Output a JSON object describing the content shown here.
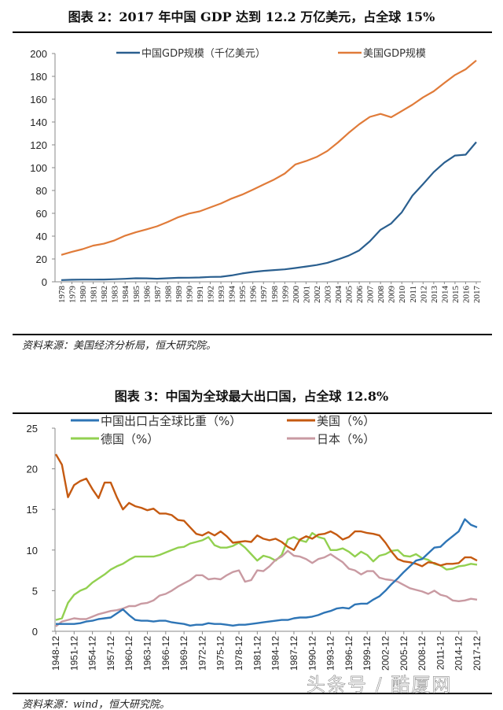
{
  "chart_data": [
    {
      "type": "line",
      "title": "图表 2：2017 年中国 GDP 达到 12.2 万亿美元，占全球 15%",
      "source": "资料来源：美国经济分析局，恒大研究院。",
      "ylim": [
        0,
        200
      ],
      "yticks": [
        0,
        20,
        40,
        60,
        80,
        100,
        120,
        140,
        160,
        180,
        200
      ],
      "legend": "top",
      "grid": false,
      "x": [
        "1978",
        "1979",
        "1980",
        "1981",
        "1982",
        "1983",
        "1984",
        "1985",
        "1986",
        "1987",
        "1988",
        "1989",
        "1990",
        "1991",
        "1992",
        "1993",
        "1994",
        "1995",
        "1996",
        "1997",
        "1998",
        "1999",
        "2000",
        "2001",
        "2002",
        "2003",
        "2004",
        "2005",
        "2006",
        "2007",
        "2008",
        "2009",
        "2010",
        "2011",
        "2012",
        "2013",
        "2014",
        "2015",
        "2016",
        "2017"
      ],
      "series": [
        {
          "name": "中国GDP规模（千亿美元）",
          "color": "#2a5f8f",
          "values": [
            1.5,
            1.8,
            1.9,
            1.9,
            2.0,
            2.3,
            2.6,
            3.1,
            3.0,
            2.7,
            3.1,
            3.5,
            3.6,
            3.8,
            4.3,
            4.4,
            5.6,
            7.3,
            8.6,
            9.6,
            10.3,
            10.9,
            12.1,
            13.4,
            14.7,
            16.6,
            19.6,
            22.9,
            27.5,
            35.5,
            45.6,
            51.1,
            60.9,
            75.5,
            85.6,
            96.1,
            104.4,
            110.6,
            111.4,
            122.4
          ]
        },
        {
          "name": "美国GDP规模",
          "color": "#e07b39",
          "values": [
            23.6,
            26.3,
            28.6,
            31.7,
            33.4,
            36.3,
            40.4,
            43.4,
            45.9,
            48.6,
            52.4,
            56.6,
            59.8,
            61.7,
            65.2,
            68.6,
            72.9,
            76.4,
            80.7,
            85.2,
            89.6,
            94.8,
            102.8,
            105.8,
            109.4,
            114.6,
            122.1,
            130.4,
            138.1,
            144.5,
            147.1,
            144.2,
            149.6,
            155.2,
            161.6,
            166.9,
            174.2,
            181.2,
            186.2,
            193.9
          ]
        }
      ]
    },
    {
      "type": "line",
      "title": "图表 3：中国为全球最大出口国，占全球 12.8%",
      "source": "资料来源：wind，恒大研究院。",
      "ylim": [
        0,
        25
      ],
      "yticks": [
        0,
        5,
        10,
        15,
        20,
        25
      ],
      "legend": "top",
      "grid": false,
      "x_start_year": 1948,
      "x_end_year": 2017,
      "xticks": [
        "1948-12",
        "1951-12",
        "1954-12",
        "1957-12",
        "1960-12",
        "1963-12",
        "1966-12",
        "1969-12",
        "1972-12",
        "1975-12",
        "1978-12",
        "1981-12",
        "1984-12",
        "1987-12",
        "1990-12",
        "1993-12",
        "1996-12",
        "1999-12",
        "2002-12",
        "2005-12",
        "2008-12",
        "2011-12",
        "2014-12",
        "2017-12"
      ],
      "series": [
        {
          "name": "中国出口占全球比重（%）",
          "color": "#2e75b6",
          "values": [
            0.9,
            0.9,
            0.9,
            0.9,
            1.0,
            1.2,
            1.3,
            1.5,
            1.6,
            1.7,
            2.2,
            2.7,
            2.0,
            1.4,
            1.3,
            1.3,
            1.2,
            1.3,
            1.3,
            1.1,
            1.0,
            0.9,
            0.7,
            0.8,
            0.8,
            1.0,
            0.9,
            0.9,
            0.8,
            0.7,
            0.8,
            0.8,
            0.9,
            1.0,
            1.1,
            1.2,
            1.3,
            1.4,
            1.4,
            1.6,
            1.7,
            1.7,
            1.8,
            2.0,
            2.3,
            2.5,
            2.8,
            2.9,
            2.8,
            3.3,
            3.4,
            3.4,
            3.9,
            4.3,
            5.0,
            5.8,
            6.5,
            7.3,
            8.0,
            8.7,
            8.9,
            9.6,
            10.3,
            10.4,
            11.1,
            11.7,
            12.3,
            13.8,
            13.1,
            12.8
          ]
        },
        {
          "name": "美国（%）",
          "color": "#c55a11",
          "values": [
            21.8,
            20.5,
            16.5,
            18.0,
            18.5,
            18.8,
            17.5,
            16.4,
            18.3,
            18.3,
            16.5,
            15.0,
            15.8,
            15.4,
            15.2,
            14.9,
            15.1,
            14.5,
            14.5,
            14.3,
            13.7,
            13.6,
            12.8,
            12.0,
            11.8,
            12.2,
            11.8,
            12.3,
            11.7,
            10.9,
            11.0,
            11.1,
            11.0,
            11.8,
            11.4,
            11.2,
            11.4,
            11.0,
            10.4,
            10.0,
            11.3,
            11.7,
            11.4,
            11.9,
            12.0,
            12.3,
            11.9,
            11.3,
            11.6,
            12.3,
            12.3,
            12.1,
            12.0,
            11.8,
            10.9,
            9.8,
            8.9,
            8.6,
            8.5,
            8.3,
            8.0,
            8.5,
            8.4,
            8.1,
            8.3,
            8.3,
            8.4,
            9.1,
            9.1,
            8.7
          ]
        },
        {
          "name": "德国（%）",
          "color": "#92d050",
          "values": [
            1.4,
            1.6,
            3.5,
            4.5,
            5.0,
            5.3,
            6.0,
            6.5,
            7.0,
            7.6,
            8.0,
            8.3,
            8.8,
            9.2,
            9.2,
            9.2,
            9.2,
            9.4,
            9.7,
            10.0,
            10.3,
            10.4,
            10.8,
            11.0,
            11.2,
            11.6,
            10.6,
            10.3,
            10.3,
            10.5,
            10.9,
            10.3,
            9.5,
            8.7,
            9.3,
            9.1,
            8.7,
            9.4,
            11.3,
            11.6,
            11.2,
            11.0,
            12.1,
            11.6,
            11.4,
            10.0,
            10.0,
            10.2,
            9.8,
            9.2,
            9.8,
            9.4,
            8.6,
            9.3,
            9.5,
            9.9,
            10.0,
            9.3,
            9.2,
            9.5,
            9.0,
            8.8,
            8.3,
            8.1,
            7.6,
            7.7,
            8.0,
            8.1,
            8.3,
            8.2
          ]
        },
        {
          "name": "日本（%）",
          "color": "#c99aa2",
          "values": [
            0.6,
            1.2,
            1.4,
            1.6,
            1.5,
            1.5,
            1.8,
            2.1,
            2.3,
            2.5,
            2.6,
            2.8,
            3.1,
            3.1,
            3.4,
            3.5,
            3.8,
            4.4,
            4.6,
            5.0,
            5.5,
            5.9,
            6.3,
            6.9,
            6.9,
            6.4,
            6.5,
            6.4,
            6.9,
            7.3,
            7.5,
            6.1,
            6.3,
            7.5,
            7.4,
            8.0,
            8.8,
            9.2,
            9.9,
            9.3,
            9.2,
            8.9,
            8.4,
            8.9,
            9.1,
            9.5,
            9.0,
            8.5,
            7.7,
            7.5,
            7.0,
            7.4,
            7.4,
            6.6,
            6.4,
            6.3,
            6.1,
            5.7,
            5.3,
            5.1,
            4.9,
            4.6,
            5.0,
            4.5,
            4.3,
            3.8,
            3.7,
            3.8,
            4.0,
            3.9
          ]
        }
      ]
    }
  ],
  "watermark": "头条号 / 酷厦网"
}
